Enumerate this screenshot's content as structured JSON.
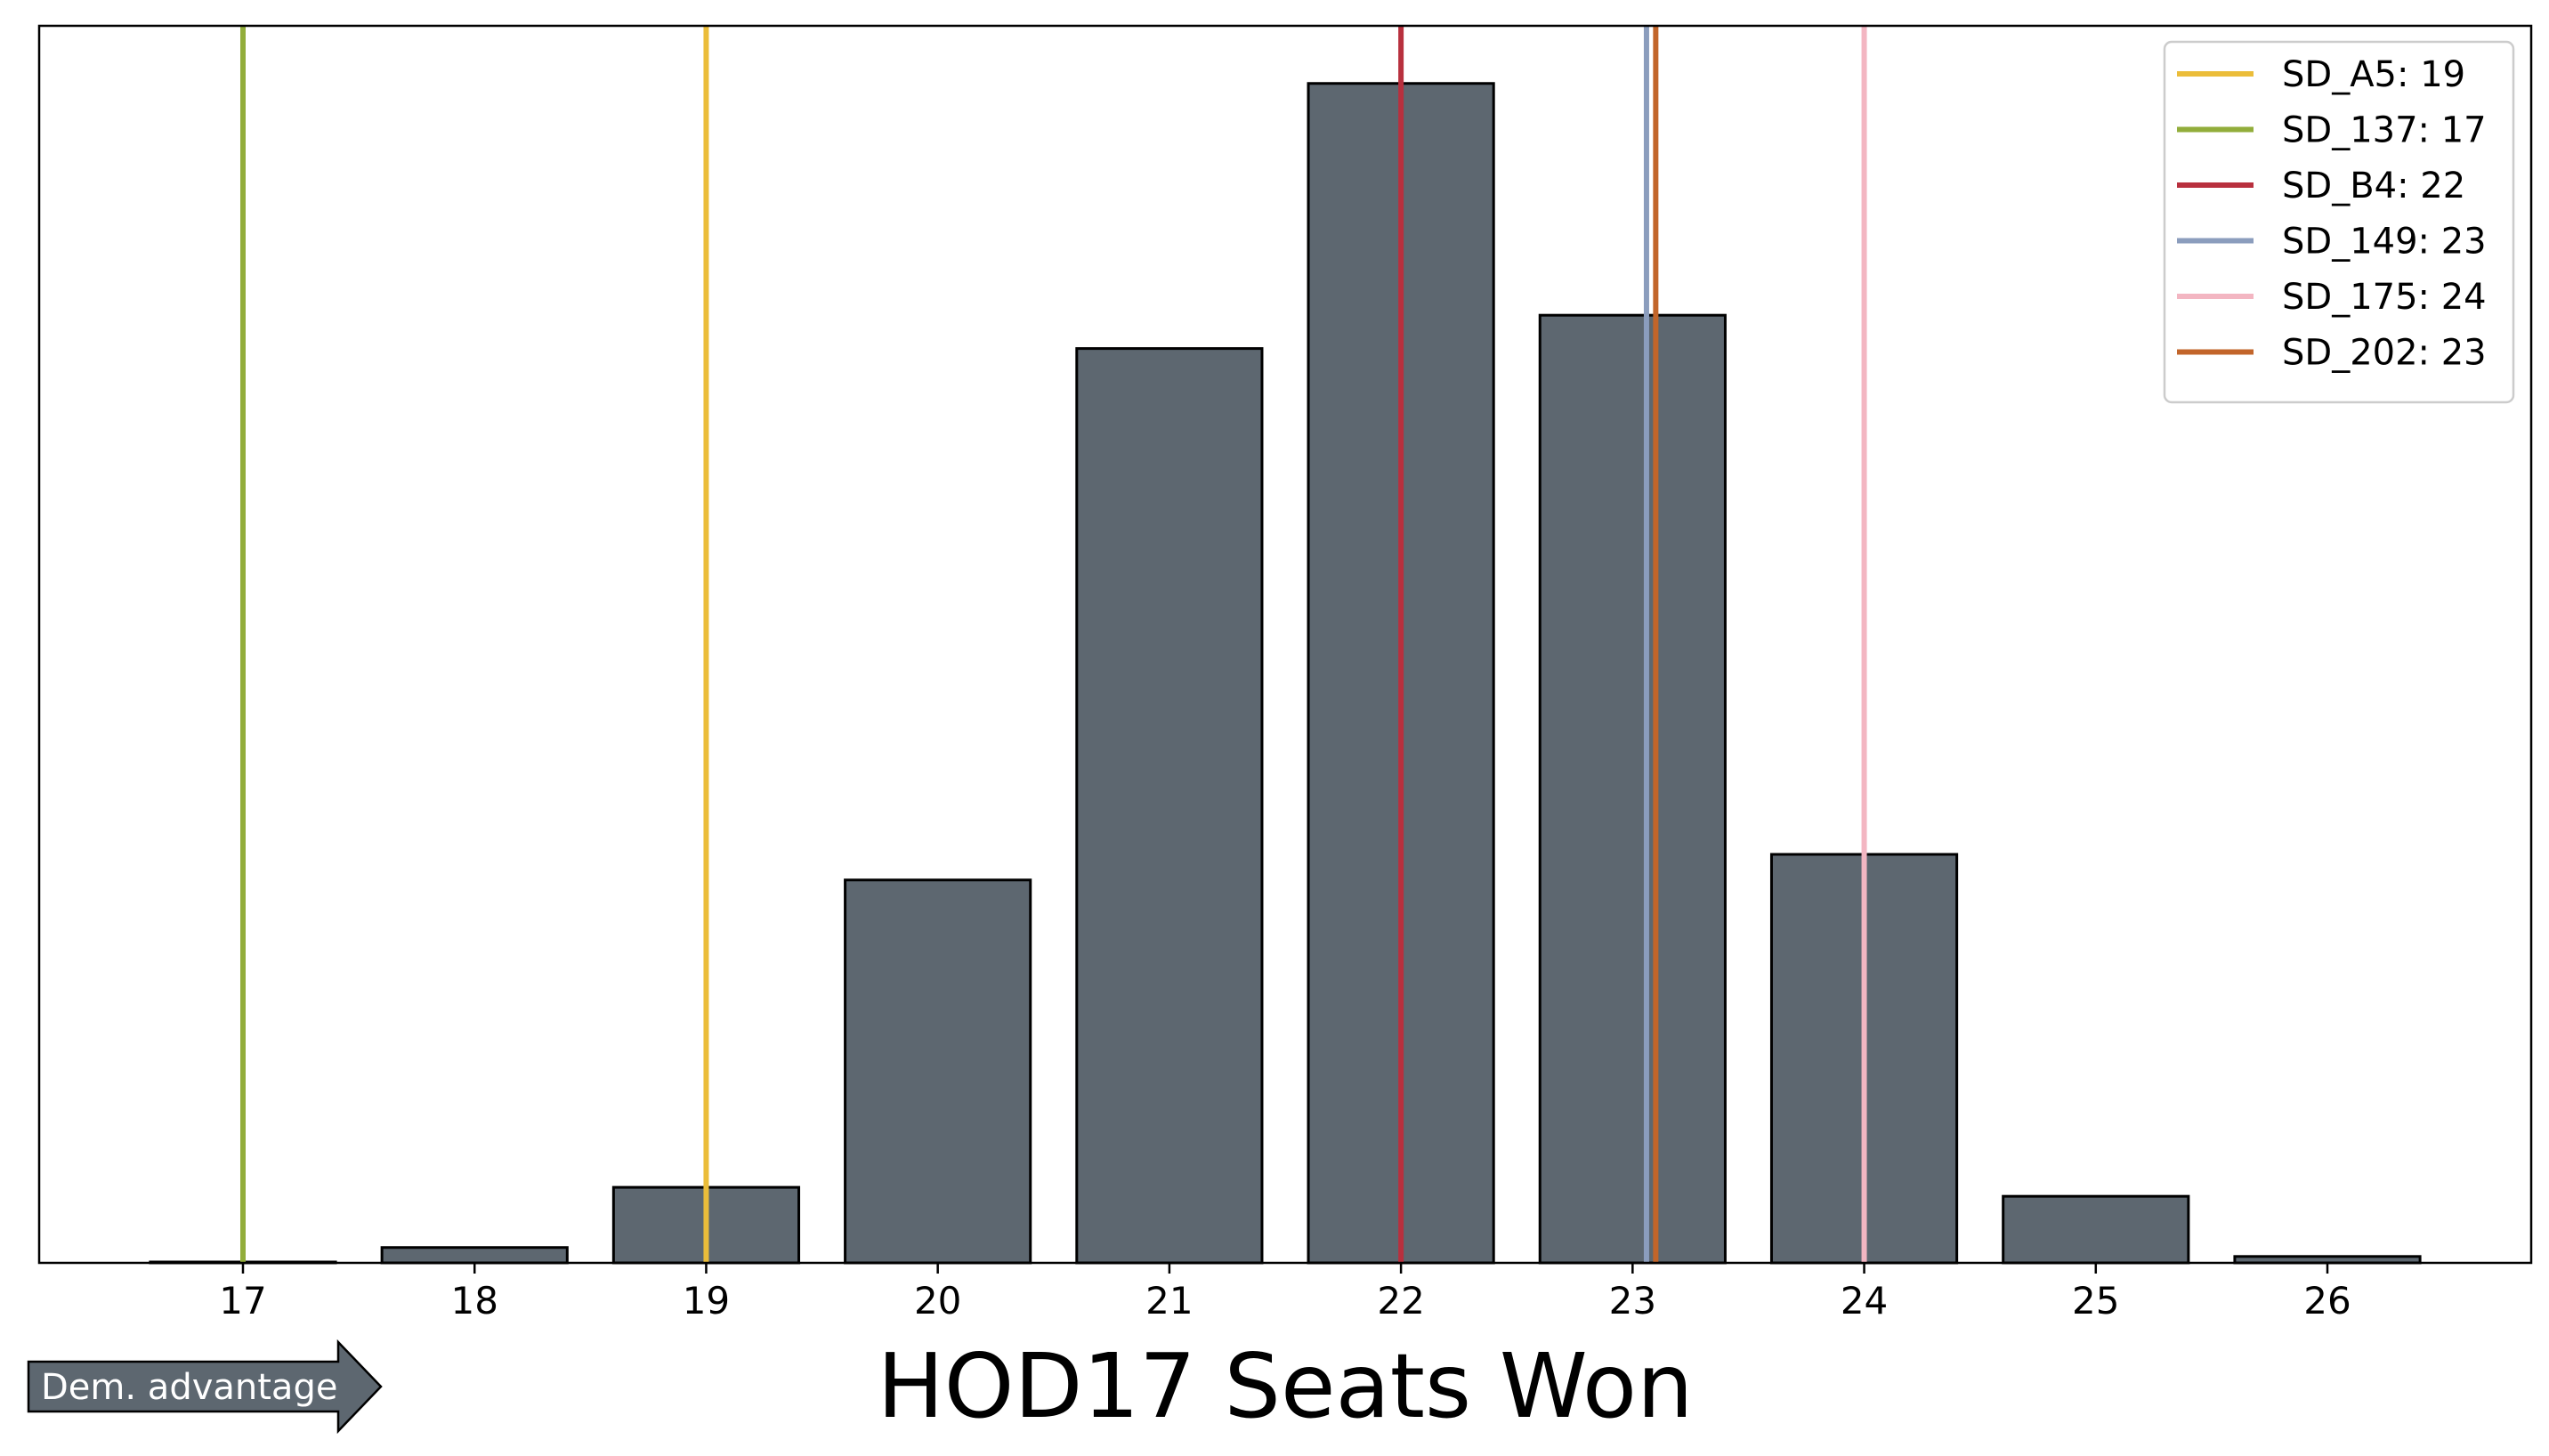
{
  "chart_data": {
    "type": "bar",
    "xlabel": "HOD17 Seats Won",
    "categories": [
      17,
      18,
      19,
      20,
      21,
      22,
      23,
      24,
      25,
      26
    ],
    "values": [
      0.0007,
      0.012,
      0.059,
      0.299,
      0.714,
      0.921,
      0.74,
      0.319,
      0.052,
      0.005
    ],
    "ylim": [
      0,
      0.966
    ],
    "xlim": [
      16.12,
      26.88
    ],
    "grid": false,
    "bar_color": "#5d6770",
    "bar_edge_color": "#000000",
    "yticks_shown": false,
    "reference_lines": [
      {
        "name": "SD_A5",
        "label": "SD_A5: 19",
        "x": 19,
        "color": "#ebbd3a"
      },
      {
        "name": "SD_137",
        "label": "SD_137: 17",
        "x": 17,
        "color": "#92ad3b"
      },
      {
        "name": "SD_B4",
        "label": "SD_B4: 22",
        "x": 22,
        "color": "#b8303e"
      },
      {
        "name": "SD_149",
        "label": "SD_149: 23",
        "x": 23.06,
        "color": "#8b9dbd"
      },
      {
        "name": "SD_175",
        "label": "SD_175: 24",
        "x": 24,
        "color": "#f3b6c2"
      },
      {
        "name": "SD_202",
        "label": "SD_202: 23",
        "x": 23.1,
        "color": "#c2652a"
      }
    ],
    "legend_position": "top-right",
    "annotation": {
      "text": "Dem. advantage",
      "direction": "right",
      "color": "#5d6770"
    }
  }
}
